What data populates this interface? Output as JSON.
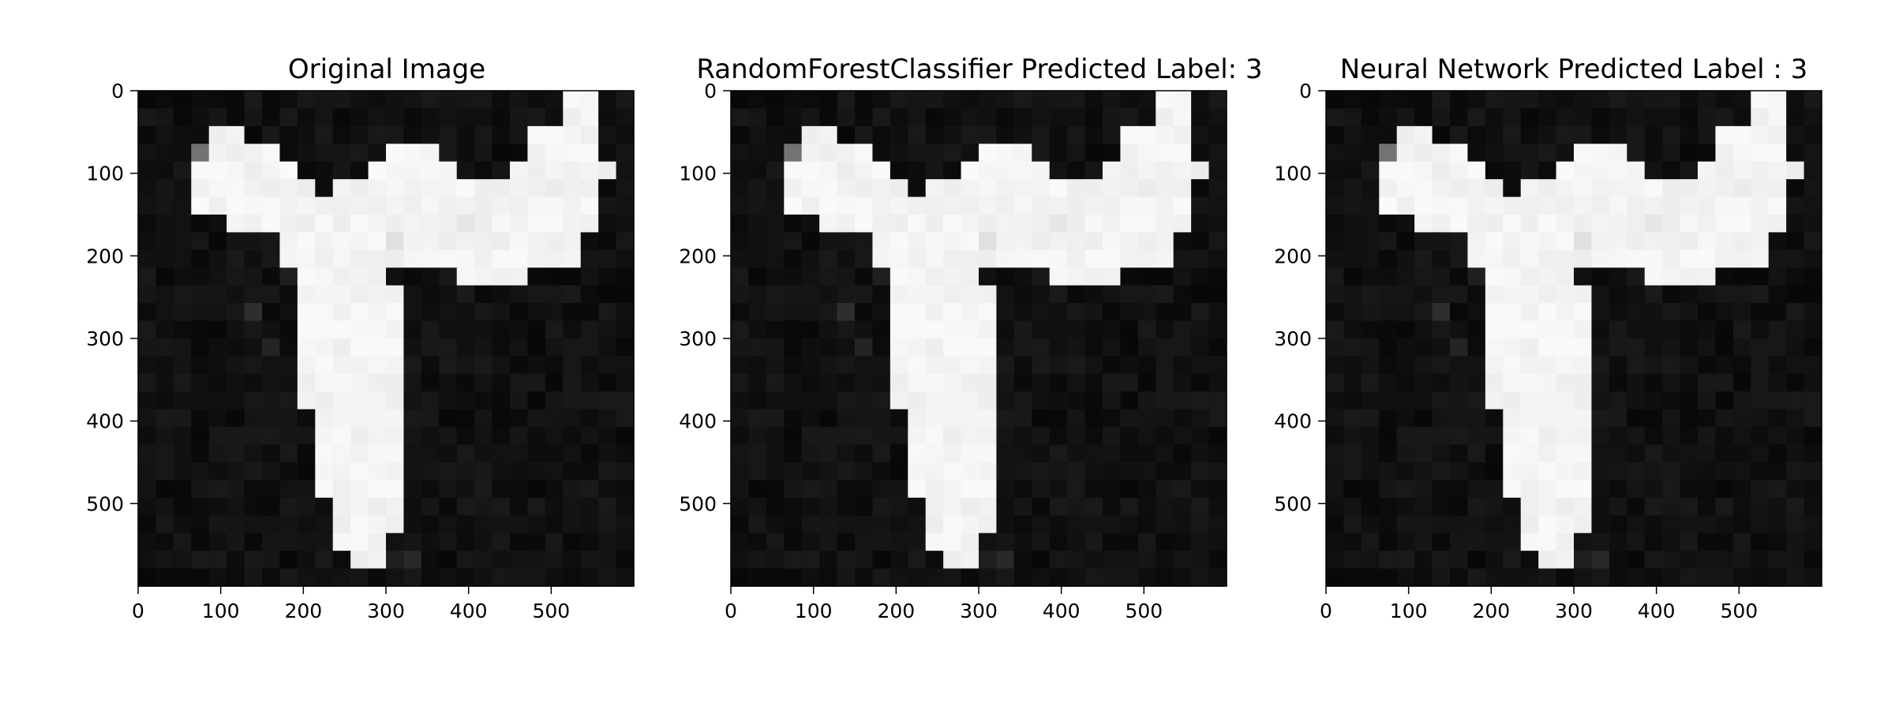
{
  "chart_data": [
    {
      "type": "heatmap",
      "title": "Original Image",
      "xlim": [
        0,
        600
      ],
      "ylim": [
        600,
        0
      ],
      "xticks": [
        0,
        100,
        200,
        300,
        400,
        500
      ],
      "yticks": [
        0,
        100,
        200,
        300,
        400,
        500
      ],
      "grid": false,
      "colormap": "gray"
    },
    {
      "type": "heatmap",
      "title": "RandomForestClassifier Predicted Label: 3",
      "xlim": [
        0,
        600
      ],
      "ylim": [
        600,
        0
      ],
      "xticks": [
        0,
        100,
        200,
        300,
        400,
        500
      ],
      "yticks": [
        0,
        100,
        200,
        300,
        400,
        500
      ],
      "grid": false,
      "colormap": "gray"
    },
    {
      "type": "heatmap",
      "title": "Neural Network Predicted Label : 3",
      "xlim": [
        0,
        600
      ],
      "ylim": [
        600,
        0
      ],
      "xticks": [
        0,
        100,
        200,
        300,
        400,
        500
      ],
      "yticks": [
        0,
        100,
        200,
        300,
        400,
        500
      ],
      "grid": false,
      "colormap": "gray"
    }
  ],
  "image": {
    "grid_size": 28,
    "background_level": 0.03,
    "foreground_level": 0.98,
    "shape_rows": [
      {
        "row": 0,
        "spans": [
          [
            24,
            25
          ]
        ]
      },
      {
        "row": 1,
        "spans": [
          [
            24,
            25
          ]
        ]
      },
      {
        "row": 2,
        "spans": [
          [
            4,
            5
          ],
          [
            22,
            25
          ]
        ]
      },
      {
        "row": 3,
        "spans": [
          [
            3,
            7
          ],
          [
            14,
            16
          ],
          [
            22,
            25
          ]
        ]
      },
      {
        "row": 4,
        "spans": [
          [
            3,
            8
          ],
          [
            13,
            17
          ],
          [
            21,
            26
          ]
        ]
      },
      {
        "row": 5,
        "spans": [
          [
            3,
            9
          ],
          [
            11,
            25
          ]
        ]
      },
      {
        "row": 6,
        "spans": [
          [
            3,
            25
          ]
        ]
      },
      {
        "row": 7,
        "spans": [
          [
            5,
            25
          ]
        ]
      },
      {
        "row": 8,
        "spans": [
          [
            8,
            24
          ]
        ]
      },
      {
        "row": 9,
        "spans": [
          [
            8,
            24
          ]
        ]
      },
      {
        "row": 10,
        "spans": [
          [
            9,
            13
          ],
          [
            18,
            21
          ]
        ]
      },
      {
        "row": 11,
        "spans": [
          [
            9,
            14
          ]
        ]
      },
      {
        "row": 12,
        "spans": [
          [
            9,
            14
          ]
        ]
      },
      {
        "row": 13,
        "spans": [
          [
            9,
            14
          ]
        ]
      },
      {
        "row": 14,
        "spans": [
          [
            9,
            14
          ]
        ]
      },
      {
        "row": 15,
        "spans": [
          [
            9,
            14
          ]
        ]
      },
      {
        "row": 16,
        "spans": [
          [
            9,
            14
          ]
        ]
      },
      {
        "row": 17,
        "spans": [
          [
            9,
            14
          ]
        ]
      },
      {
        "row": 18,
        "spans": [
          [
            10,
            14
          ]
        ]
      },
      {
        "row": 19,
        "spans": [
          [
            10,
            14
          ]
        ]
      },
      {
        "row": 20,
        "spans": [
          [
            10,
            14
          ]
        ]
      },
      {
        "row": 21,
        "spans": [
          [
            10,
            14
          ]
        ]
      },
      {
        "row": 22,
        "spans": [
          [
            10,
            14
          ]
        ]
      },
      {
        "row": 23,
        "spans": [
          [
            11,
            14
          ]
        ]
      },
      {
        "row": 24,
        "spans": [
          [
            11,
            14
          ]
        ]
      },
      {
        "row": 25,
        "spans": [
          [
            11,
            13
          ]
        ]
      },
      {
        "row": 26,
        "spans": [
          [
            12,
            13
          ]
        ]
      },
      {
        "row": 27,
        "spans": []
      }
    ],
    "accent_pixels": [
      {
        "row": 3,
        "col": 3,
        "level": 0.45
      },
      {
        "row": 10,
        "col": 8,
        "level": 0.12
      },
      {
        "row": 12,
        "col": 6,
        "level": 0.18
      },
      {
        "row": 14,
        "col": 7,
        "level": 0.14
      },
      {
        "row": 26,
        "col": 15,
        "level": 0.16
      },
      {
        "row": 26,
        "col": 14,
        "level": 0.12
      },
      {
        "row": 11,
        "col": 18,
        "level": 0.1
      },
      {
        "row": 8,
        "col": 14,
        "level": 0.88
      },
      {
        "row": 7,
        "col": 18,
        "level": 0.9
      },
      {
        "row": 5,
        "col": 23,
        "level": 0.92
      }
    ]
  }
}
